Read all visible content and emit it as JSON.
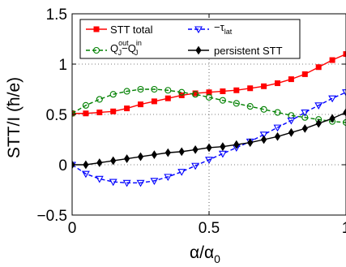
{
  "chart_data": {
    "type": "line",
    "xlabel": "α/α",
    "xlabel_sub": "0",
    "ylabel": "STT/I (ħ/e)",
    "xlim": [
      0,
      1
    ],
    "ylim": [
      -0.5,
      1.5
    ],
    "xticks": [
      0,
      0.5,
      1
    ],
    "yticks": [
      -0.5,
      0,
      0.5,
      1,
      1.5
    ],
    "xtick_labels": [
      "0",
      "0.5",
      "1"
    ],
    "ytick_labels": [
      "−0.5",
      "0",
      "0.5",
      "1",
      "1.5"
    ],
    "grid": "dotted",
    "legend_placement": "top",
    "legend": {
      "stt_total": "STT total",
      "tau_lat": "−τ",
      "tau_lat_sub": "lat",
      "q_diff": {
        "q1": "Q",
        "q1_sub": "J",
        "q1_sup": "out",
        "minus": "−Q",
        "q2_sub": "J",
        "q2_sup": "in"
      },
      "persistent": "persistent STT"
    },
    "series": [
      {
        "key": "stt_total",
        "color": "#ff0000",
        "marker": "square",
        "style": "solid",
        "x": [
          0,
          0.05,
          0.1,
          0.15,
          0.2,
          0.25,
          0.3,
          0.35,
          0.4,
          0.45,
          0.5,
          0.55,
          0.6,
          0.65,
          0.7,
          0.75,
          0.8,
          0.85,
          0.9,
          0.95,
          1.0
        ],
        "y": [
          0.51,
          0.51,
          0.52,
          0.53,
          0.56,
          0.6,
          0.63,
          0.66,
          0.69,
          0.71,
          0.72,
          0.73,
          0.74,
          0.76,
          0.78,
          0.81,
          0.85,
          0.9,
          0.97,
          1.04,
          1.1
        ]
      },
      {
        "key": "q_diff",
        "color": "#008000",
        "marker": "circle",
        "style": "dashed",
        "x": [
          0,
          0.05,
          0.1,
          0.15,
          0.2,
          0.25,
          0.3,
          0.35,
          0.4,
          0.45,
          0.5,
          0.55,
          0.6,
          0.65,
          0.7,
          0.75,
          0.8,
          0.85,
          0.9,
          0.95,
          1.0
        ],
        "y": [
          0.51,
          0.59,
          0.65,
          0.7,
          0.73,
          0.75,
          0.75,
          0.74,
          0.72,
          0.7,
          0.67,
          0.64,
          0.61,
          0.58,
          0.55,
          0.52,
          0.49,
          0.47,
          0.45,
          0.43,
          0.42
        ]
      },
      {
        "key": "tau_lat",
        "color": "#0000ff",
        "marker": "triangle-down",
        "style": "dashed",
        "x": [
          0,
          0.05,
          0.1,
          0.15,
          0.2,
          0.25,
          0.3,
          0.35,
          0.4,
          0.45,
          0.5,
          0.55,
          0.6,
          0.65,
          0.7,
          0.75,
          0.8,
          0.85,
          0.9,
          0.95,
          1.0
        ],
        "y": [
          0.0,
          -0.09,
          -0.14,
          -0.17,
          -0.18,
          -0.18,
          -0.16,
          -0.12,
          -0.07,
          -0.01,
          0.05,
          0.11,
          0.17,
          0.23,
          0.3,
          0.37,
          0.44,
          0.52,
          0.59,
          0.66,
          0.72
        ]
      },
      {
        "key": "persistent",
        "color": "#000000",
        "marker": "diamond",
        "style": "solid",
        "x": [
          0,
          0.05,
          0.1,
          0.15,
          0.2,
          0.25,
          0.3,
          0.35,
          0.4,
          0.45,
          0.5,
          0.55,
          0.6,
          0.65,
          0.7,
          0.75,
          0.8,
          0.85,
          0.9,
          0.95,
          1.0
        ],
        "y": [
          0.0,
          0.0,
          0.02,
          0.04,
          0.06,
          0.08,
          0.1,
          0.12,
          0.13,
          0.15,
          0.17,
          0.18,
          0.2,
          0.22,
          0.25,
          0.28,
          0.32,
          0.36,
          0.41,
          0.46,
          0.52
        ]
      }
    ]
  }
}
